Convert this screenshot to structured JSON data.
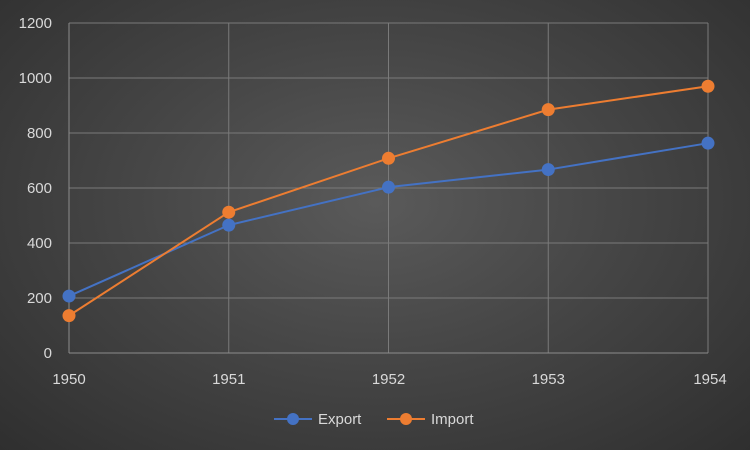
{
  "chart_data": {
    "type": "line",
    "x": [
      "1950",
      "1951",
      "1952",
      "1953",
      "1954"
    ],
    "ylim": [
      0,
      1200
    ],
    "yticks": [
      0,
      200,
      400,
      600,
      800,
      1000,
      1200
    ],
    "grid": true,
    "legend_position": "bottom",
    "series": [
      {
        "name": "Export",
        "color": "#4472c4",
        "values": [
          207,
          465,
          603,
          667,
          763
        ]
      },
      {
        "name": "Import",
        "color": "#ed7d31",
        "values": [
          136,
          512,
          708,
          885,
          970
        ]
      }
    ]
  }
}
